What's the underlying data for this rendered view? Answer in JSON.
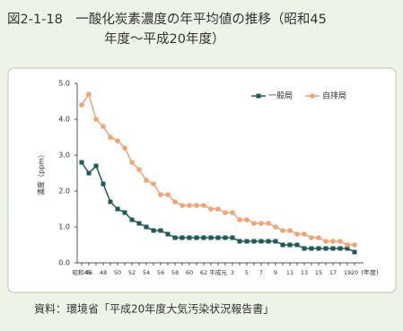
{
  "chart_data": {
    "type": "line",
    "title": [
      "図2-1-18　一酸化炭素濃度の年平均値の推移（昭和45",
      "年度〜平成20年度）"
    ],
    "y_label": "濃度（ppm）",
    "x_label": "(年度)",
    "source": "資料：環境省「平成20年度大気汚染状況報告書」",
    "categories": [
      "昭和45",
      "46",
      null,
      "48",
      null,
      "50",
      null,
      "52",
      null,
      "54",
      null,
      "56",
      null,
      "58",
      null,
      "60",
      null,
      "62",
      null,
      "平成元",
      null,
      "3",
      null,
      "5",
      null,
      "7",
      null,
      "9",
      null,
      "11",
      null,
      "13",
      null,
      "15",
      null,
      "17",
      null,
      "19",
      "20"
    ],
    "series": [
      {
        "name": "一般局",
        "color": "#1f5a5a",
        "marker": "square",
        "values": [
          2.8,
          2.5,
          2.7,
          2.2,
          1.7,
          1.5,
          1.4,
          1.2,
          1.1,
          1.0,
          0.9,
          0.9,
          0.8,
          0.7,
          0.7,
          0.7,
          0.7,
          0.7,
          0.7,
          0.7,
          0.7,
          0.7,
          0.6,
          0.6,
          0.6,
          0.6,
          0.6,
          0.6,
          0.5,
          0.5,
          0.5,
          0.4,
          0.4,
          0.4,
          0.4,
          0.4,
          0.4,
          0.4,
          0.3
        ]
      },
      {
        "name": "自排局",
        "color": "#f2a273",
        "marker": "circle",
        "values": [
          4.4,
          4.7,
          4.0,
          3.8,
          3.5,
          3.4,
          3.2,
          2.8,
          2.6,
          2.3,
          2.2,
          1.9,
          1.9,
          1.7,
          1.6,
          1.6,
          1.6,
          1.6,
          1.5,
          1.5,
          1.4,
          1.4,
          1.2,
          1.2,
          1.1,
          1.1,
          1.1,
          1.0,
          0.9,
          0.9,
          0.8,
          0.8,
          0.7,
          0.7,
          0.6,
          0.6,
          0.6,
          0.5,
          0.5
        ]
      }
    ],
    "ylim": [
      0,
      5
    ],
    "yticks": [
      {
        "value": 0,
        "label": "0.0"
      },
      {
        "value": 1,
        "label": "1.0"
      },
      {
        "value": 2,
        "label": "2.0"
      },
      {
        "value": 3,
        "label": "3.0"
      },
      {
        "value": 4,
        "label": "4.0"
      },
      {
        "value": 5,
        "label": "5.0"
      }
    ],
    "grid": false,
    "legend": "top-right"
  }
}
